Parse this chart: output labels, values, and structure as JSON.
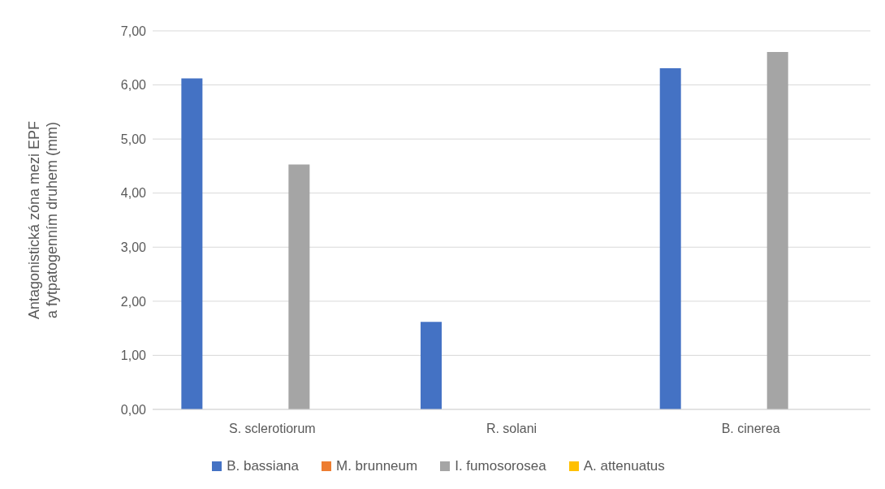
{
  "chart_data": {
    "type": "bar",
    "ylabel": "Antagonistická zóna mezi EPF a fytpatogenním druhem (mm)",
    "categories": [
      "S. sclerotiorum",
      "R. solani",
      "B. cinerea"
    ],
    "series": [
      {
        "name": "B. bassiana",
        "color": "#4472c4",
        "values": [
          6.12,
          1.62,
          6.31
        ]
      },
      {
        "name": "M. brunneum",
        "color": "#ed7d31",
        "values": [
          0,
          0,
          0
        ]
      },
      {
        "name": "I. fumosorosea",
        "color": "#a5a5a5",
        "values": [
          4.53,
          0,
          6.61
        ]
      },
      {
        "name": "A. attenuatus",
        "color": "#ffc000",
        "values": [
          0,
          0,
          0
        ]
      }
    ],
    "ylim": [
      0,
      7
    ],
    "yticks": [
      {
        "value": 0,
        "label": "0,00"
      },
      {
        "value": 1,
        "label": "1,00"
      },
      {
        "value": 2,
        "label": "2,00"
      },
      {
        "value": 3,
        "label": "3,00"
      },
      {
        "value": 4,
        "label": "4,00"
      },
      {
        "value": 5,
        "label": "5,00"
      },
      {
        "value": 6,
        "label": "6,00"
      },
      {
        "value": 7,
        "label": "7,00"
      }
    ],
    "grid": "y",
    "legend": "bottom"
  }
}
